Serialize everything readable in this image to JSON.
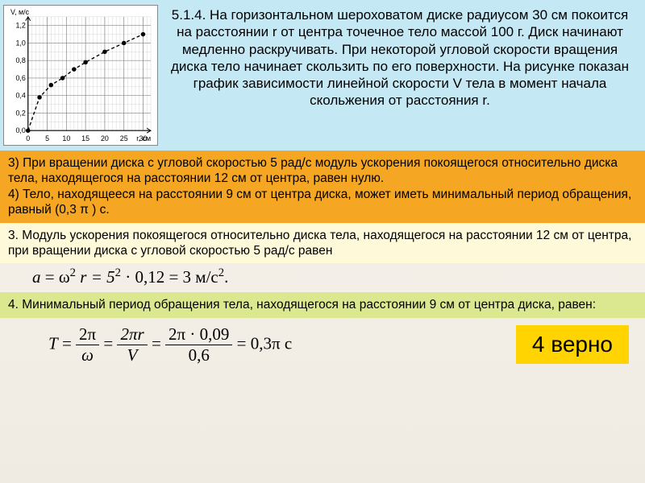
{
  "chart": {
    "type": "line",
    "xlabel": "r, см",
    "ylabel": "V, м/с",
    "xlim": [
      0,
      32
    ],
    "ylim": [
      0,
      1.3
    ],
    "xticks": [
      0,
      5,
      10,
      15,
      20,
      25,
      30
    ],
    "yticks": [
      0,
      0.2,
      0.4,
      0.6,
      0.8,
      1.0,
      1.2
    ],
    "points_x": [
      0,
      3,
      6,
      9,
      12,
      15,
      20,
      25,
      30
    ],
    "points_y": [
      0,
      0.38,
      0.52,
      0.6,
      0.7,
      0.78,
      0.9,
      1.0,
      1.1
    ],
    "marker": "circle",
    "marker_fill": "#000000",
    "line_color": "#000000",
    "line_dash": "4,3",
    "grid_color": "#888888",
    "background_color": "#ffffff",
    "label_fontsize": 9,
    "tick_fontsize": 9
  },
  "colors": {
    "problem_bg": "#c5e8f5",
    "orange_bg": "#f5a623",
    "yellow_bg": "#fef9d9",
    "green_bg": "#dbe88f",
    "badge_bg": "#ffd400",
    "text": "#000000"
  },
  "problem": {
    "number": "5.1.4.",
    "text": "На горизонтальном шероховатом диске радиусом 30 см покоится на расстоянии r от центра точечное тело массой 100 г. Диск начинают медленно раскручивать. При некоторой угловой скорости вращения диска тело начинает скользить по его поверхности. На рисунке показан график зависимости линейной скорости V тела в момент начала скольжения от расстояния r."
  },
  "orange": {
    "line3": "3) При вращении диска с угловой скоростью 5 рад/с модуль ускорения покоящегося относительно диска тела, находящегося на расстоянии 12 см от центра, равен нулю.",
    "line4": "4) Тело, находящееся на расстоянии 9 см от центра диска, может иметь минимальный период обращения, равный (0,3 π ) с."
  },
  "sol3": {
    "label": "3.",
    "text": "Модуль ускорения покоящегося относительно диска тела, находящегося на расстоянии 12 см от центра, при вращении диска с угловой скоростью 5 рад/с равен",
    "formula_a": "a",
    "formula_eq1": "= ω",
    "formula_sup1": "2",
    "formula_r": "r = 5",
    "formula_sup2": "2",
    "formula_tail": " · 0,12 = 3  м/с",
    "formula_sup3": "2",
    "formula_end": "."
  },
  "sol4": {
    "label": "4.",
    "text": "Минимальный период обращения тела, находящегося на расстоянии 9 см от центра диска, равен:",
    "f_T": "T",
    "f_eq": " = ",
    "frac1_num": "2π",
    "frac1_den": "ω",
    "frac2_num": "2πr",
    "frac2_den": "V",
    "frac3_num": "2π · 0,09",
    "frac3_den": "0,6",
    "f_result": " = 0,3π  с"
  },
  "badge": "4 верно"
}
